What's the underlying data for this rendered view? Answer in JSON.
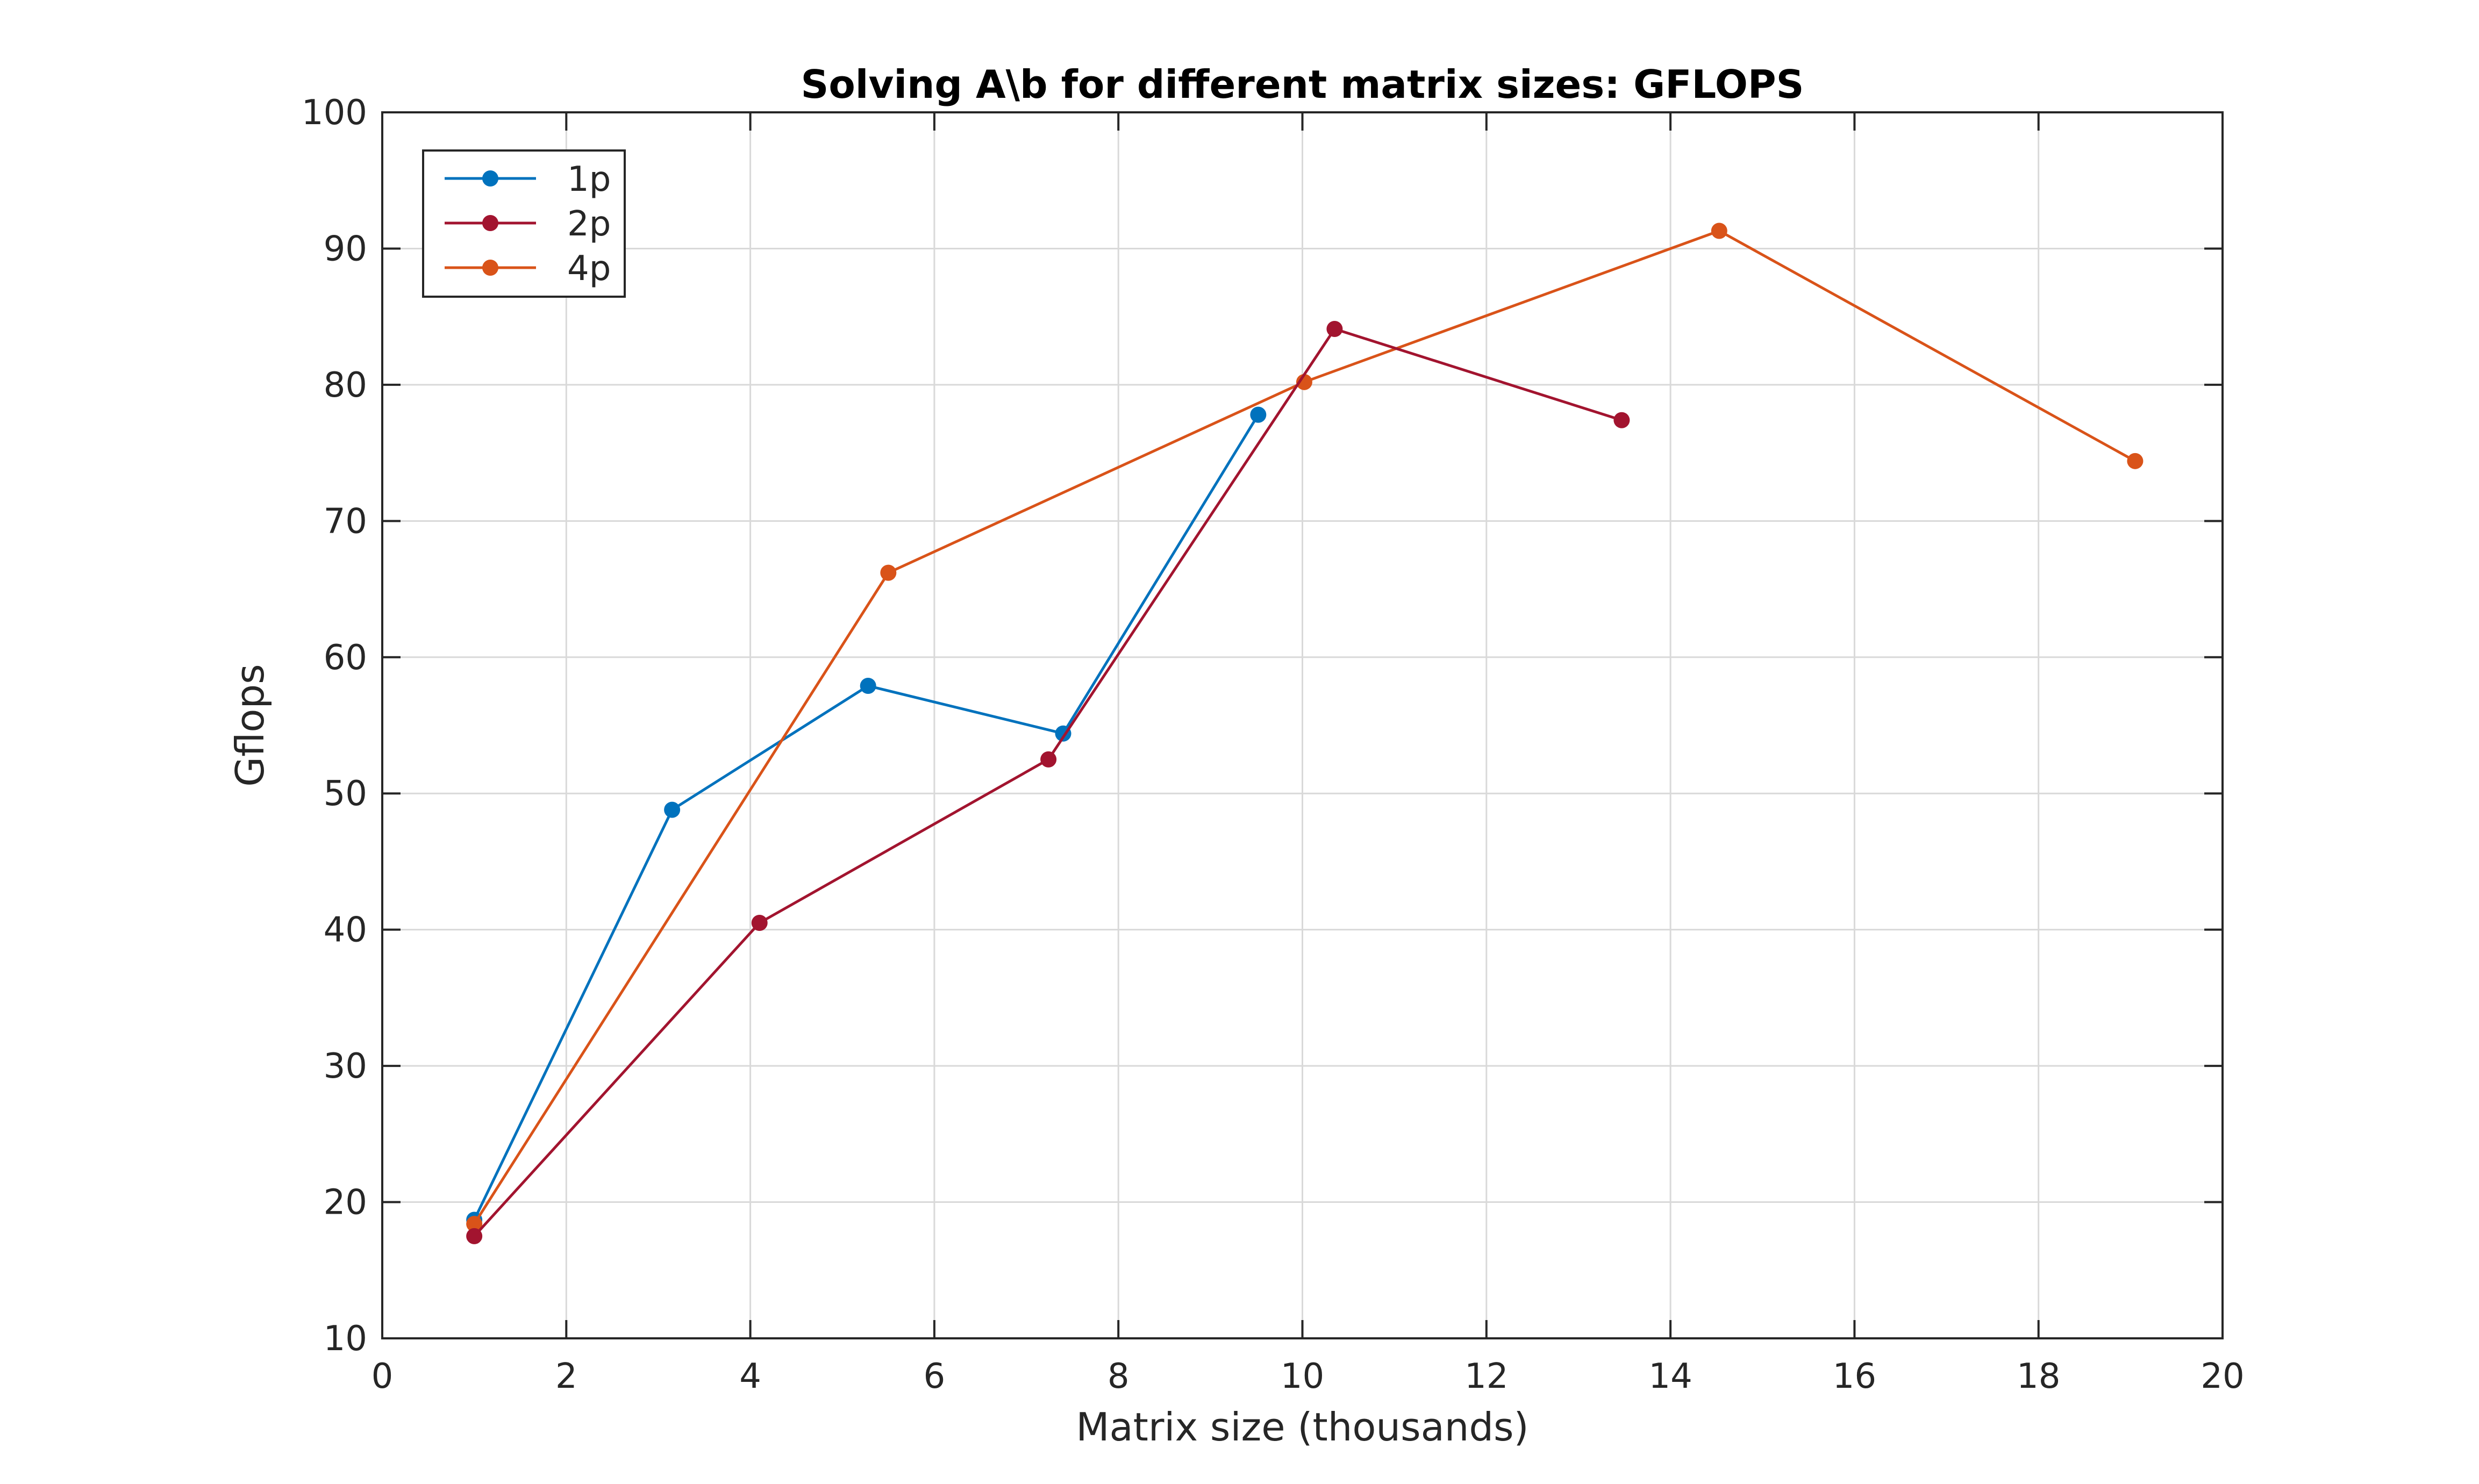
{
  "colors": {
    "background": "#ffffff",
    "axes": "#262626",
    "grid": "#d9d9d9",
    "series_1p": "#0072BD",
    "series_2p": "#A2142F",
    "series_4p": "#D95319"
  },
  "chart_data": {
    "type": "line",
    "title": "Solving A\\b for different matrix sizes: GFLOPS",
    "xlabel": "Matrix size (thousands)",
    "ylabel": "Gflops",
    "xlim": [
      0,
      20
    ],
    "ylim": [
      10,
      100
    ],
    "xticks": [
      0,
      2,
      4,
      6,
      8,
      10,
      12,
      14,
      16,
      18,
      20
    ],
    "yticks": [
      10,
      20,
      30,
      40,
      50,
      60,
      70,
      80,
      90,
      100
    ],
    "grid": true,
    "legend_location": "top-left",
    "marker": "filled-circle",
    "series": [
      {
        "name": "1p",
        "color": "#0072BD",
        "x": [
          1.0,
          3.15,
          5.28,
          7.4,
          9.52
        ],
        "y": [
          18.7,
          48.8,
          57.9,
          54.4,
          77.8
        ]
      },
      {
        "name": "2p",
        "color": "#A2142F",
        "x": [
          1.0,
          4.1,
          7.24,
          10.35,
          13.47
        ],
        "y": [
          17.5,
          40.5,
          52.5,
          84.1,
          77.4
        ]
      },
      {
        "name": "4p",
        "color": "#D95319",
        "x": [
          1.0,
          5.5,
          10.02,
          14.53,
          19.05
        ],
        "y": [
          18.4,
          66.2,
          80.2,
          91.3,
          74.4
        ]
      }
    ]
  }
}
